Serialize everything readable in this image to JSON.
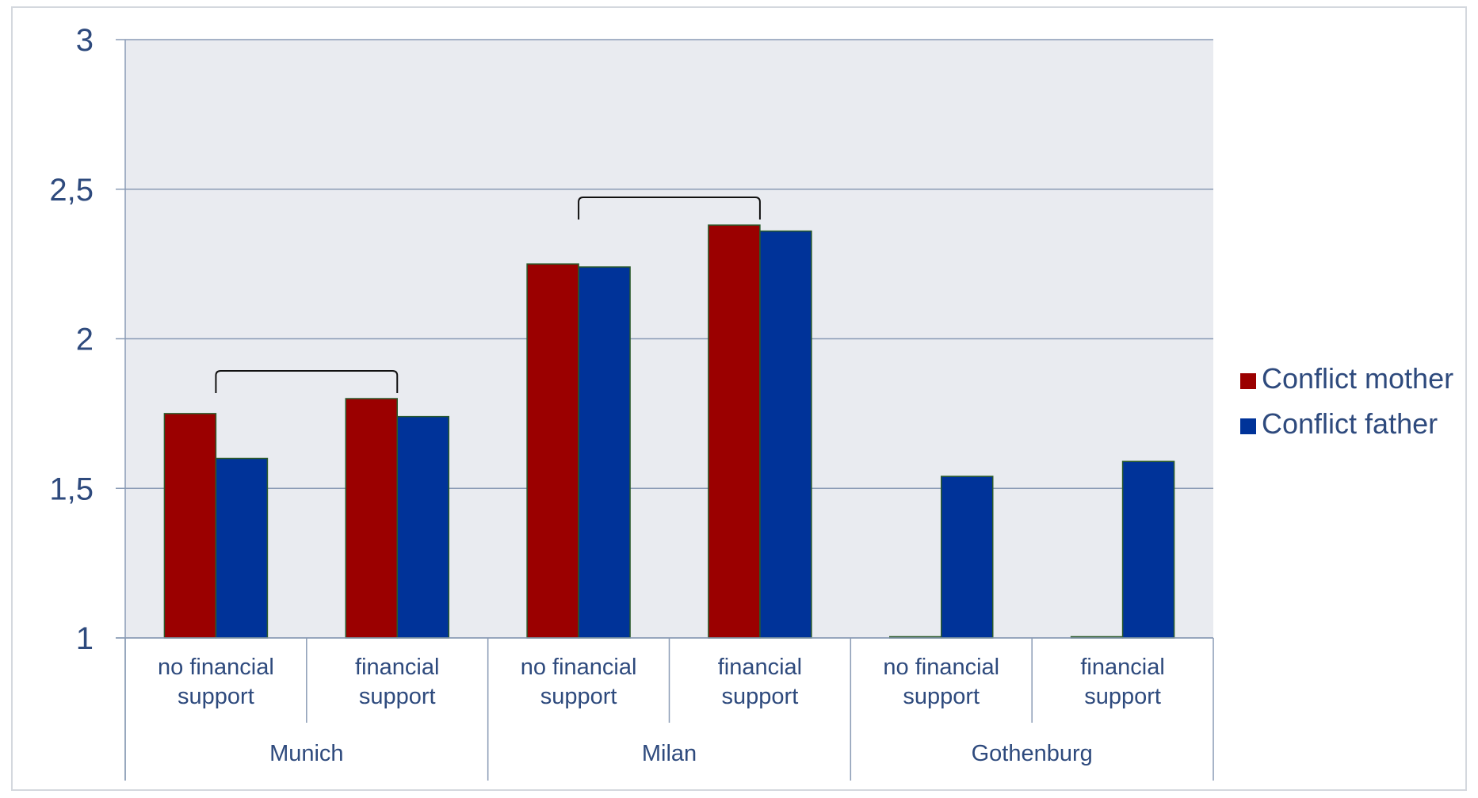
{
  "chart_data": {
    "type": "bar",
    "title": "",
    "xlabel": "",
    "ylabel": "",
    "ylim": [
      1,
      3
    ],
    "yticks": [
      {
        "value": 1,
        "label": "1"
      },
      {
        "value": 1.5,
        "label": "1,5"
      },
      {
        "value": 2,
        "label": "2"
      },
      {
        "value": 2.5,
        "label": "2,5"
      },
      {
        "value": 3,
        "label": "3"
      }
    ],
    "grid": true,
    "legend_position": "right",
    "groups": [
      "Munich",
      "Milan",
      "Gothenburg"
    ],
    "subcategories": [
      [
        "no financial",
        "support"
      ],
      [
        "financial",
        "support"
      ]
    ],
    "categories": [
      "Munich - no financial support",
      "Munich - financial support",
      "Milan - no financial support",
      "Milan - financial support",
      "Gothenburg - no financial support",
      "Gothenburg - financial support"
    ],
    "series": [
      {
        "name": "Conflict mother",
        "color": "#9b0000",
        "values": [
          1.75,
          1.8,
          2.25,
          2.38,
          1.0,
          1.0
        ]
      },
      {
        "name": "Conflict father",
        "color": "#003399",
        "values": [
          1.6,
          1.74,
          2.24,
          2.36,
          1.54,
          1.59
        ]
      }
    ],
    "brackets": [
      {
        "from_category": 0,
        "to_category": 1
      },
      {
        "from_category": 2,
        "to_category": 3
      }
    ]
  },
  "colors": {
    "plot_background": "#e9ebf0",
    "gridline": "#8a9bb5",
    "text": "#2e4a7d",
    "bar_border": "#2a5a2a"
  }
}
